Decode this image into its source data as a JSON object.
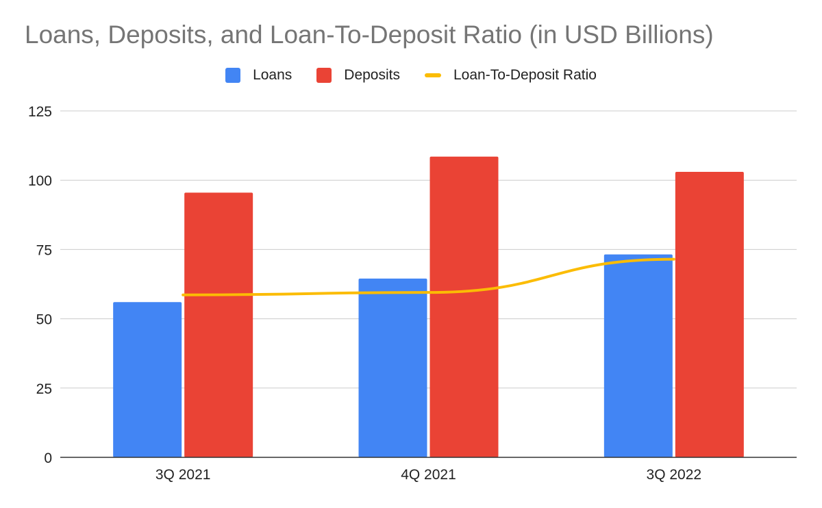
{
  "chart_data": {
    "type": "bar",
    "title": "Loans, Deposits, and Loan-To-Deposit Ratio (in USD Billions)",
    "categories": [
      "3Q 2021",
      "4Q 2021",
      "3Q 2022"
    ],
    "series": [
      {
        "name": "Loans",
        "type": "bar",
        "color": "#4285F4",
        "values": [
          56,
          64.5,
          73.2
        ]
      },
      {
        "name": "Deposits",
        "type": "bar",
        "color": "#EA4335",
        "values": [
          95.5,
          108.5,
          103
        ]
      },
      {
        "name": "Loan-To-Deposit Ratio",
        "type": "line",
        "color": "#FBBC04",
        "values": [
          58.6,
          59.5,
          71.5
        ]
      }
    ],
    "yticks": [
      0,
      25,
      50,
      75,
      100,
      125
    ],
    "ylim": [
      0,
      125
    ],
    "grid": true,
    "legend_position": "top-center",
    "xlabel": "",
    "ylabel": ""
  }
}
